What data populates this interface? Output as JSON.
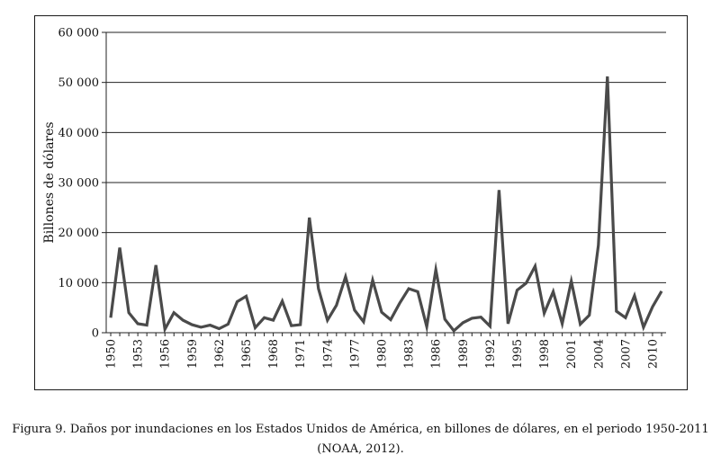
{
  "chart_data": {
    "type": "line",
    "ylabel": "Billones de dólares",
    "xlabel": "",
    "ylim": [
      0,
      60000
    ],
    "y_ticks": [
      0,
      10000,
      20000,
      30000,
      40000,
      50000,
      60000
    ],
    "y_tick_labels": [
      "0",
      "10 000",
      "20 000",
      "30 000",
      "40 000",
      "50 000",
      "60 000"
    ],
    "x_tick_labels": [
      "1950",
      "1953",
      "1956",
      "1959",
      "1962",
      "1965",
      "1968",
      "1971",
      "1974",
      "1977",
      "1980",
      "1983",
      "1986",
      "1989",
      "1992",
      "1995",
      "1998",
      "2001",
      "2004",
      "2007",
      "2010"
    ],
    "grid": "horizontal",
    "series": [
      {
        "name": "Daños por inundaciones",
        "color": "#4a4a4a",
        "x": [
          1950,
          1951,
          1952,
          1953,
          1954,
          1955,
          1956,
          1957,
          1958,
          1959,
          1960,
          1961,
          1962,
          1963,
          1964,
          1965,
          1966,
          1967,
          1968,
          1969,
          1970,
          1971,
          1972,
          1973,
          1974,
          1975,
          1976,
          1977,
          1978,
          1979,
          1980,
          1981,
          1982,
          1983,
          1984,
          1985,
          1986,
          1987,
          1988,
          1989,
          1990,
          1991,
          1992,
          1993,
          1994,
          1995,
          1996,
          1997,
          1998,
          1999,
          2000,
          2001,
          2002,
          2003,
          2004,
          2005,
          2006,
          2007,
          2008,
          2009,
          2010,
          2011
        ],
        "values": [
          3000,
          17000,
          4000,
          1800,
          1500,
          13500,
          700,
          4000,
          2500,
          1600,
          1100,
          1500,
          800,
          1700,
          6200,
          7300,
          1000,
          3000,
          2500,
          6300,
          1400,
          1600,
          23000,
          8800,
          2500,
          5500,
          11200,
          4500,
          2200,
          10500,
          4100,
          2600,
          5900,
          8800,
          8200,
          1200,
          12600,
          2700,
          400,
          2000,
          2900,
          3100,
          1300,
          28500,
          1800,
          8500,
          9900,
          13300,
          3900,
          8200,
          1800,
          10300,
          1700,
          3500,
          17500,
          51200,
          4300,
          3000,
          7400,
          1100,
          5200,
          8300
        ]
      }
    ]
  },
  "caption": {
    "line1": "Figura 9. Daños por inundaciones en los Estados Unidos de América, en billones de dólares, en el periodo 1950-2011",
    "line2": "(NOAA, 2012)."
  }
}
